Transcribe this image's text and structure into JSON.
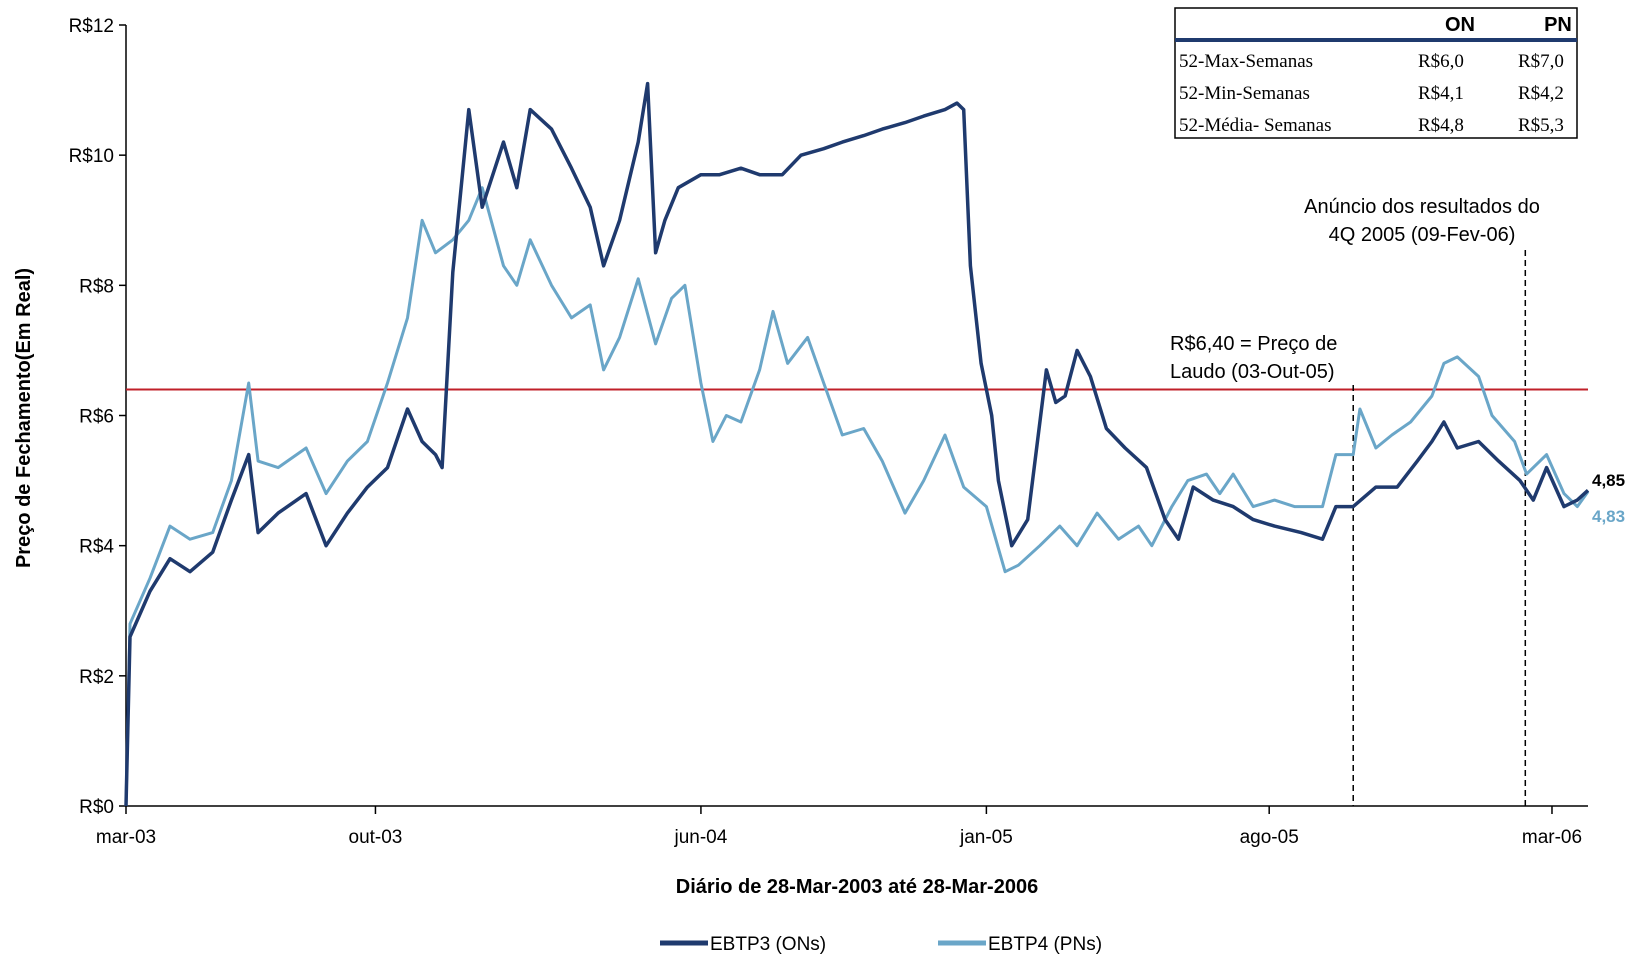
{
  "chart_data": {
    "type": "line",
    "title": "",
    "xlabel": "Diário de 28-Mar-2003 até 28-Mar-2006",
    "ylabel": "Preço de Fechamento(Em Real)",
    "ylim": [
      0,
      12
    ],
    "yticks": [
      {
        "value": 0,
        "label": "R$0"
      },
      {
        "value": 2,
        "label": "R$2"
      },
      {
        "value": 4,
        "label": "R$4"
      },
      {
        "value": 6,
        "label": "R$6"
      },
      {
        "value": 8,
        "label": "R$8"
      },
      {
        "value": 10,
        "label": "R$10"
      },
      {
        "value": 12,
        "label": "R$12"
      }
    ],
    "xlim": [
      "2003-03-28",
      "2006-03-28"
    ],
    "xticks": [
      {
        "date": "2003-03-01",
        "label": "mar-03"
      },
      {
        "date": "2003-10-01",
        "label": "out-03"
      },
      {
        "date": "2004-06-01",
        "label": "jun-04"
      },
      {
        "date": "2005-01-01",
        "label": "jan-05"
      },
      {
        "date": "2005-08-01",
        "label": "ago-05"
      },
      {
        "date": "2006-03-01",
        "label": "mar-06"
      }
    ],
    "grid": false,
    "legend_position": "bottom-center",
    "series": [
      {
        "name": "EBTP3 (ONs)",
        "color": "#1f3a6e",
        "end_label": "4,85",
        "points": [
          [
            "2003-03-28",
            0.0
          ],
          [
            "2003-03-31",
            2.6
          ],
          [
            "2003-04-15",
            3.3
          ],
          [
            "2003-04-30",
            3.8
          ],
          [
            "2003-05-15",
            3.6
          ],
          [
            "2003-06-01",
            3.9
          ],
          [
            "2003-06-15",
            4.7
          ],
          [
            "2003-06-28",
            5.4
          ],
          [
            "2003-07-05",
            4.2
          ],
          [
            "2003-07-20",
            4.5
          ],
          [
            "2003-08-10",
            4.8
          ],
          [
            "2003-08-25",
            4.0
          ],
          [
            "2003-09-10",
            4.5
          ],
          [
            "2003-09-25",
            4.9
          ],
          [
            "2003-10-10",
            5.2
          ],
          [
            "2003-10-25",
            6.1
          ],
          [
            "2003-11-05",
            5.6
          ],
          [
            "2003-11-15",
            5.4
          ],
          [
            "2003-11-20",
            5.2
          ],
          [
            "2003-11-28",
            8.2
          ],
          [
            "2003-12-10",
            10.7
          ],
          [
            "2003-12-20",
            9.2
          ],
          [
            "2004-01-05",
            10.2
          ],
          [
            "2004-01-15",
            9.5
          ],
          [
            "2004-01-25",
            10.7
          ],
          [
            "2004-02-10",
            10.4
          ],
          [
            "2004-02-25",
            9.8
          ],
          [
            "2004-03-10",
            9.2
          ],
          [
            "2004-03-20",
            8.3
          ],
          [
            "2004-04-01",
            9.0
          ],
          [
            "2004-04-15",
            10.2
          ],
          [
            "2004-04-22",
            11.1
          ],
          [
            "2004-04-28",
            8.5
          ],
          [
            "2004-05-05",
            9.0
          ],
          [
            "2004-05-15",
            9.5
          ],
          [
            "2004-06-01",
            9.7
          ],
          [
            "2004-06-15",
            9.7
          ],
          [
            "2004-07-01",
            9.8
          ],
          [
            "2004-07-15",
            9.7
          ],
          [
            "2004-08-01",
            9.7
          ],
          [
            "2004-08-15",
            10.0
          ],
          [
            "2004-09-01",
            10.1
          ],
          [
            "2004-09-15",
            10.2
          ],
          [
            "2004-10-01",
            10.3
          ],
          [
            "2004-10-15",
            10.4
          ],
          [
            "2004-11-01",
            10.5
          ],
          [
            "2004-11-15",
            10.6
          ],
          [
            "2004-12-01",
            10.7
          ],
          [
            "2004-12-10",
            10.8
          ],
          [
            "2004-12-15",
            10.7
          ],
          [
            "2004-12-20",
            8.3
          ],
          [
            "2004-12-28",
            6.8
          ],
          [
            "2005-01-05",
            6.0
          ],
          [
            "2005-01-10",
            5.0
          ],
          [
            "2005-01-20",
            4.0
          ],
          [
            "2005-02-01",
            4.4
          ],
          [
            "2005-02-15",
            6.7
          ],
          [
            "2005-02-22",
            6.2
          ],
          [
            "2005-03-01",
            6.3
          ],
          [
            "2005-03-10",
            7.0
          ],
          [
            "2005-03-20",
            6.6
          ],
          [
            "2005-04-01",
            5.8
          ],
          [
            "2005-04-15",
            5.5
          ],
          [
            "2005-05-01",
            5.2
          ],
          [
            "2005-05-15",
            4.4
          ],
          [
            "2005-05-25",
            4.1
          ],
          [
            "2005-06-05",
            4.9
          ],
          [
            "2005-06-20",
            4.7
          ],
          [
            "2005-07-05",
            4.6
          ],
          [
            "2005-07-20",
            4.4
          ],
          [
            "2005-08-05",
            4.3
          ],
          [
            "2005-08-25",
            4.2
          ],
          [
            "2005-09-10",
            4.1
          ],
          [
            "2005-09-20",
            4.6
          ],
          [
            "2005-10-03",
            4.6
          ],
          [
            "2005-10-20",
            4.9
          ],
          [
            "2005-11-05",
            4.9
          ],
          [
            "2005-11-20",
            5.3
          ],
          [
            "2005-12-01",
            5.6
          ],
          [
            "2005-12-10",
            5.9
          ],
          [
            "2005-12-20",
            5.5
          ],
          [
            "2006-01-05",
            5.6
          ],
          [
            "2006-01-20",
            5.3
          ],
          [
            "2006-02-05",
            5.0
          ],
          [
            "2006-02-15",
            4.7
          ],
          [
            "2006-02-25",
            5.2
          ],
          [
            "2006-03-10",
            4.6
          ],
          [
            "2006-03-20",
            4.7
          ],
          [
            "2006-03-28",
            4.85
          ]
        ]
      },
      {
        "name": "EBTP4 (PNs)",
        "color": "#6aa6c8",
        "end_label": "4,83",
        "points": [
          [
            "2003-03-28",
            0.0
          ],
          [
            "2003-03-31",
            2.8
          ],
          [
            "2003-04-15",
            3.5
          ],
          [
            "2003-04-30",
            4.3
          ],
          [
            "2003-05-15",
            4.1
          ],
          [
            "2003-06-01",
            4.2
          ],
          [
            "2003-06-15",
            5.0
          ],
          [
            "2003-06-28",
            6.5
          ],
          [
            "2003-07-05",
            5.3
          ],
          [
            "2003-07-20",
            5.2
          ],
          [
            "2003-08-10",
            5.5
          ],
          [
            "2003-08-25",
            4.8
          ],
          [
            "2003-09-10",
            5.3
          ],
          [
            "2003-09-25",
            5.6
          ],
          [
            "2003-10-10",
            6.5
          ],
          [
            "2003-10-25",
            7.5
          ],
          [
            "2003-11-05",
            9.0
          ],
          [
            "2003-11-15",
            8.5
          ],
          [
            "2003-11-28",
            8.7
          ],
          [
            "2003-12-10",
            9.0
          ],
          [
            "2003-12-20",
            9.5
          ],
          [
            "2004-01-05",
            8.3
          ],
          [
            "2004-01-15",
            8.0
          ],
          [
            "2004-01-25",
            8.7
          ],
          [
            "2004-02-10",
            8.0
          ],
          [
            "2004-02-25",
            7.5
          ],
          [
            "2004-03-10",
            7.7
          ],
          [
            "2004-03-20",
            6.7
          ],
          [
            "2004-04-01",
            7.2
          ],
          [
            "2004-04-15",
            8.1
          ],
          [
            "2004-04-28",
            7.1
          ],
          [
            "2004-05-10",
            7.8
          ],
          [
            "2004-05-20",
            8.0
          ],
          [
            "2004-06-01",
            6.5
          ],
          [
            "2004-06-10",
            5.6
          ],
          [
            "2004-06-20",
            6.0
          ],
          [
            "2004-07-01",
            5.9
          ],
          [
            "2004-07-15",
            6.7
          ],
          [
            "2004-07-25",
            7.6
          ],
          [
            "2004-08-05",
            6.8
          ],
          [
            "2004-08-20",
            7.2
          ],
          [
            "2004-09-01",
            6.5
          ],
          [
            "2004-09-15",
            5.7
          ],
          [
            "2004-10-01",
            5.8
          ],
          [
            "2004-10-15",
            5.3
          ],
          [
            "2004-11-01",
            4.5
          ],
          [
            "2004-11-15",
            5.0
          ],
          [
            "2004-12-01",
            5.7
          ],
          [
            "2004-12-15",
            4.9
          ],
          [
            "2005-01-01",
            4.6
          ],
          [
            "2005-01-15",
            3.6
          ],
          [
            "2005-01-25",
            3.7
          ],
          [
            "2005-02-10",
            4.0
          ],
          [
            "2005-02-25",
            4.3
          ],
          [
            "2005-03-10",
            4.0
          ],
          [
            "2005-03-25",
            4.5
          ],
          [
            "2005-04-10",
            4.1
          ],
          [
            "2005-04-25",
            4.3
          ],
          [
            "2005-05-05",
            4.0
          ],
          [
            "2005-05-20",
            4.6
          ],
          [
            "2005-06-01",
            5.0
          ],
          [
            "2005-06-15",
            5.1
          ],
          [
            "2005-06-25",
            4.8
          ],
          [
            "2005-07-05",
            5.1
          ],
          [
            "2005-07-20",
            4.6
          ],
          [
            "2005-08-05",
            4.7
          ],
          [
            "2005-08-20",
            4.6
          ],
          [
            "2005-09-10",
            4.6
          ],
          [
            "2005-09-20",
            5.4
          ],
          [
            "2005-10-03",
            5.4
          ],
          [
            "2005-10-08",
            6.1
          ],
          [
            "2005-10-20",
            5.5
          ],
          [
            "2005-11-01",
            5.7
          ],
          [
            "2005-11-15",
            5.9
          ],
          [
            "2005-12-01",
            6.3
          ],
          [
            "2005-12-10",
            6.8
          ],
          [
            "2005-12-20",
            6.9
          ],
          [
            "2006-01-05",
            6.6
          ],
          [
            "2006-01-15",
            6.0
          ],
          [
            "2006-02-01",
            5.6
          ],
          [
            "2006-02-10",
            5.1
          ],
          [
            "2006-02-25",
            5.4
          ],
          [
            "2006-03-10",
            4.8
          ],
          [
            "2006-03-20",
            4.6
          ],
          [
            "2006-03-28",
            4.83
          ]
        ]
      }
    ],
    "reference_line": {
      "value": 6.4,
      "color": "#c0202a"
    },
    "event_lines": [
      {
        "date": "2005-10-03"
      },
      {
        "date": "2006-02-09"
      }
    ],
    "annotations": {
      "laudo_line1": "R$6,40 = Preço de",
      "laudo_line2": "Laudo (03-Out-05)",
      "results_line1": "Anúncio dos resultados do",
      "results_line2": "4Q 2005  (09-Fev-06)"
    },
    "stats_table": {
      "headers": [
        "",
        "ON",
        "PN"
      ],
      "rows": [
        [
          "52-Max-Semanas",
          "R$6,0",
          "R$7,0"
        ],
        [
          "52-Min-Semanas",
          "R$4,1",
          "R$4,2"
        ],
        [
          "52-Média- Semanas",
          "R$4,8",
          "R$5,3"
        ]
      ]
    }
  }
}
